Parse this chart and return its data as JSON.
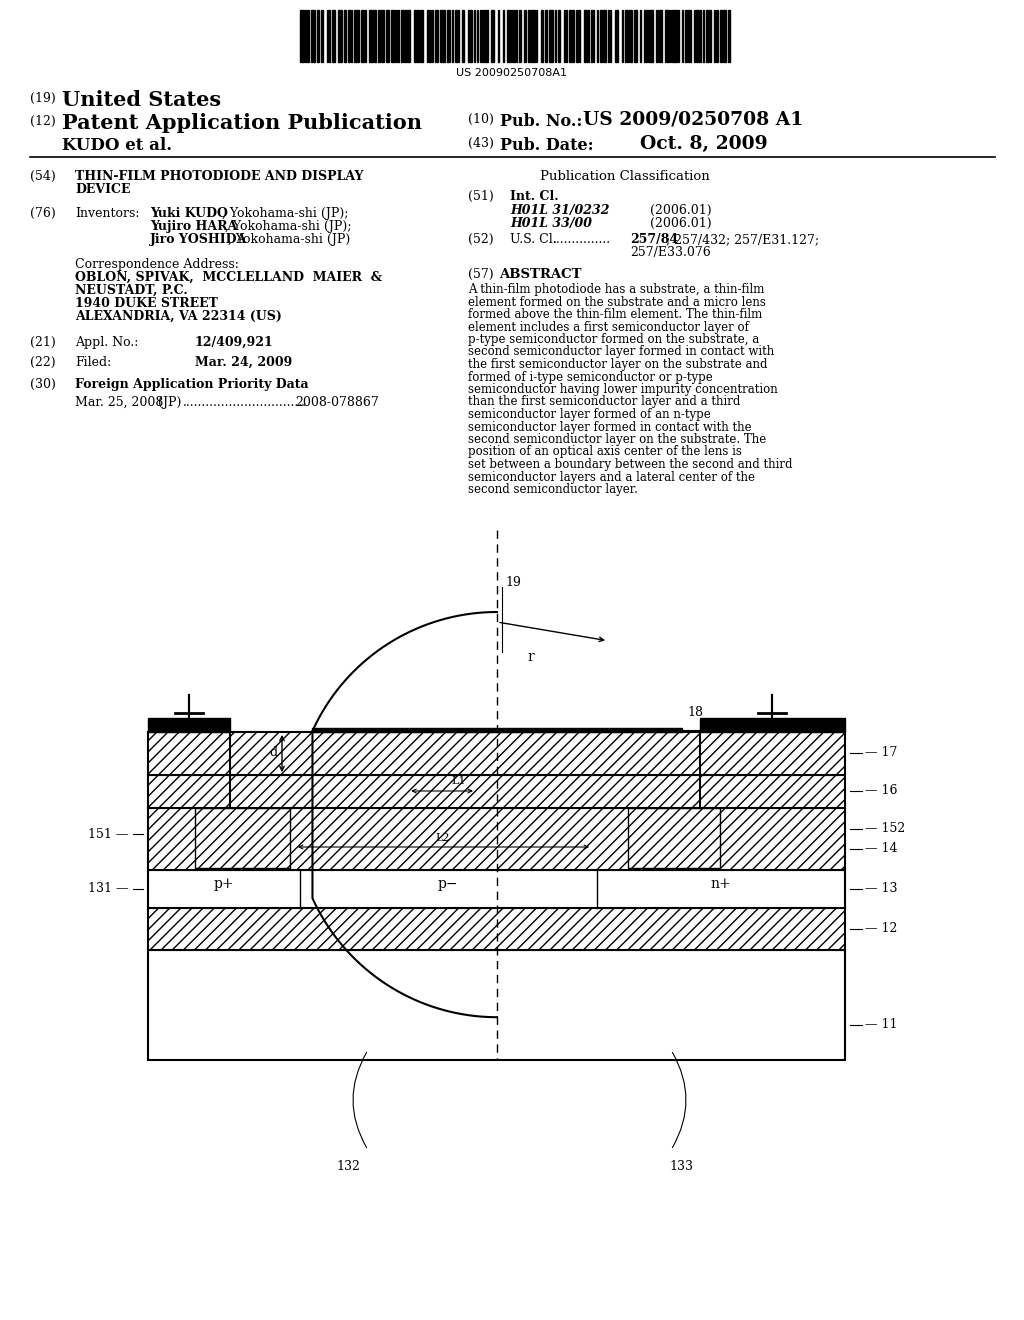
{
  "background_color": "#ffffff",
  "barcode_text": "US 20090250708A1",
  "header_line1_num": "(19)",
  "header_line1_text": "United States",
  "header_line2_num": "(12)",
  "header_line2_text": "Patent Application Publication",
  "pub_no_label": "(10) Pub. No.:",
  "pub_no_val": "US 2009/0250708 A1",
  "pub_date_label": "(43) Pub. Date:",
  "pub_date_val": "Oct. 8, 2009",
  "assignee": "KUDO et al.",
  "title_num": "(54)",
  "title_line1": "THIN-FILM PHOTODIODE AND DISPLAY",
  "title_line2": "DEVICE",
  "inventors_num": "(76)",
  "inventors_label": "Inventors:",
  "inventor1_bold": "Yuki KUDO",
  "inventor1_rest": ", Yokohama-shi (JP);",
  "inventor2_bold": "Yujiro HARA",
  "inventor2_rest": ", Yokohama-shi (JP);",
  "inventor3_bold": "Jiro YOSHIDA",
  "inventor3_rest": ", Yokohama-shi (JP)",
  "corr_label": "Correspondence Address:",
  "corr_line1": "OBLON, SPIVAK,  MCCLELLAND  MAIER  &",
  "corr_line2": "NEUSTADT, P.C.",
  "corr_line3": "1940 DUKE STREET",
  "corr_line4": "ALEXANDRIA, VA 22314 (US)",
  "appl_num": "(21)",
  "appl_label": "Appl. No.:",
  "appl_val": "12/409,921",
  "filed_num": "(22)",
  "filed_label": "Filed:",
  "filed_val": "Mar. 24, 2009",
  "foreign_num": "(30)",
  "foreign_label": "Foreign Application Priority Data",
  "foreign_date": "Mar. 25, 2008",
  "foreign_country": "(JP)",
  "foreign_dots": "................................",
  "foreign_appno": "2008-078867",
  "pubclass_title": "Publication Classification",
  "intcl_num": "(51)",
  "intcl_label": "Int. Cl.",
  "intcl_1_code": "H01L 31/0232",
  "intcl_1_year": "(2006.01)",
  "intcl_2_code": "H01L 33/00",
  "intcl_2_year": "(2006.01)",
  "uscl_num": "(52)",
  "uscl_label": "U.S. Cl.",
  "uscl_dots": "...............",
  "uscl_val1": "257/84",
  "uscl_val2": "; 257/432; 257/E31.127;",
  "uscl_val3": "257/E33.076",
  "abstract_num": "(57)",
  "abstract_title": "ABSTRACT",
  "abstract_text": "A thin-film photodiode has a substrate, a thin-film element formed on the substrate and a micro lens formed above the thin-film element. The thin-film element includes a first semiconductor layer of p-type semiconductor formed on the substrate, a second semiconductor layer formed in contact with the first semiconductor layer on the substrate and formed of i-type semiconductor or p-type semiconductor having lower impurity concentration than the first semiconductor layer and a third semiconductor layer formed of an n-type semiconductor layer formed in contact with the second semiconductor layer on the substrate. The position of an optical axis center of the lens is set between a boundary between the second and third semiconductor layers and a lateral center of the second semiconductor layer.",
  "diagram_bg": "#ffffff"
}
